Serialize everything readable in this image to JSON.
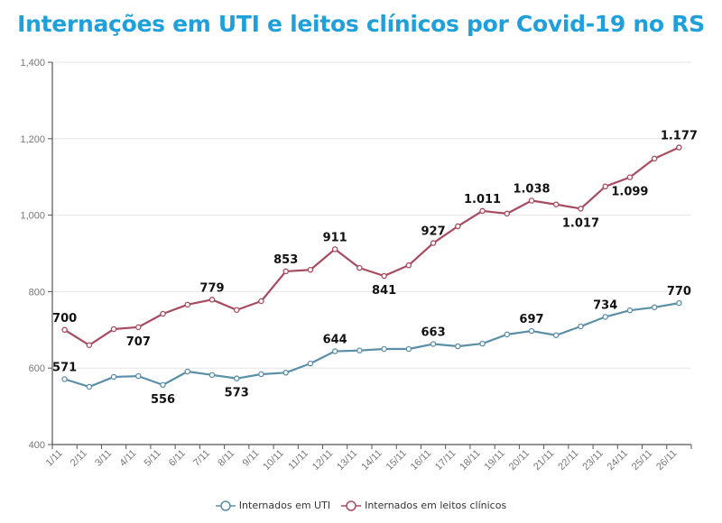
{
  "chart_data": {
    "type": "line",
    "title": "Internações em UTI e leitos clínicos por Covid-19 no RS",
    "xlabel": "",
    "ylabel": "",
    "ylim": [
      400,
      1400
    ],
    "yticks": [
      400,
      600,
      800,
      1000,
      1200,
      1400
    ],
    "ytick_labels": [
      "400",
      "600",
      "800",
      "1,000",
      "1,200",
      "1,400"
    ],
    "grid": true,
    "legend_position": "bottom-center",
    "categories": [
      "1/11",
      "2/11",
      "3/11",
      "4/11",
      "5/11",
      "6/11",
      "7/11",
      "8/11",
      "9/11",
      "10/11",
      "11/11",
      "12/11",
      "13/11",
      "14/11",
      "15/11",
      "16/11",
      "17/11",
      "18/11",
      "19/11",
      "20/11",
      "21/11",
      "22/11",
      "23/11",
      "24/11",
      "25/11",
      "26/11"
    ],
    "series": [
      {
        "name": "Internados em UTI",
        "color": "#5b8fa8",
        "values": [
          571,
          551,
          577,
          579,
          556,
          591,
          582,
          573,
          584,
          588,
          612,
          644,
          646,
          650,
          650,
          663,
          657,
          664,
          688,
          697,
          686,
          709,
          734,
          751,
          759,
          770
        ],
        "labels": [
          {
            "index": 0,
            "text": "571",
            "pos": "above"
          },
          {
            "index": 4,
            "text": "556",
            "pos": "below"
          },
          {
            "index": 7,
            "text": "573",
            "pos": "below"
          },
          {
            "index": 11,
            "text": "644",
            "pos": "above"
          },
          {
            "index": 15,
            "text": "663",
            "pos": "above"
          },
          {
            "index": 19,
            "text": "697",
            "pos": "above"
          },
          {
            "index": 22,
            "text": "734",
            "pos": "above"
          },
          {
            "index": 25,
            "text": "770",
            "pos": "above"
          }
        ]
      },
      {
        "name": "Internados em leitos clínicos",
        "color": "#a84a60",
        "values": [
          700,
          660,
          702,
          707,
          742,
          766,
          779,
          752,
          775,
          853,
          857,
          911,
          862,
          841,
          869,
          927,
          971,
          1011,
          1004,
          1038,
          1028,
          1017,
          1075,
          1099,
          1148,
          1177
        ],
        "labels": [
          {
            "index": 0,
            "text": "700",
            "pos": "above"
          },
          {
            "index": 3,
            "text": "707",
            "pos": "below"
          },
          {
            "index": 6,
            "text": "779",
            "pos": "above"
          },
          {
            "index": 9,
            "text": "853",
            "pos": "above"
          },
          {
            "index": 11,
            "text": "911",
            "pos": "above"
          },
          {
            "index": 13,
            "text": "841",
            "pos": "below"
          },
          {
            "index": 15,
            "text": "927",
            "pos": "above"
          },
          {
            "index": 17,
            "text": "1.011",
            "pos": "above"
          },
          {
            "index": 19,
            "text": "1.038",
            "pos": "above"
          },
          {
            "index": 21,
            "text": "1.017",
            "pos": "below"
          },
          {
            "index": 23,
            "text": "1.099",
            "pos": "below"
          },
          {
            "index": 25,
            "text": "1.177",
            "pos": "above"
          }
        ]
      }
    ]
  }
}
